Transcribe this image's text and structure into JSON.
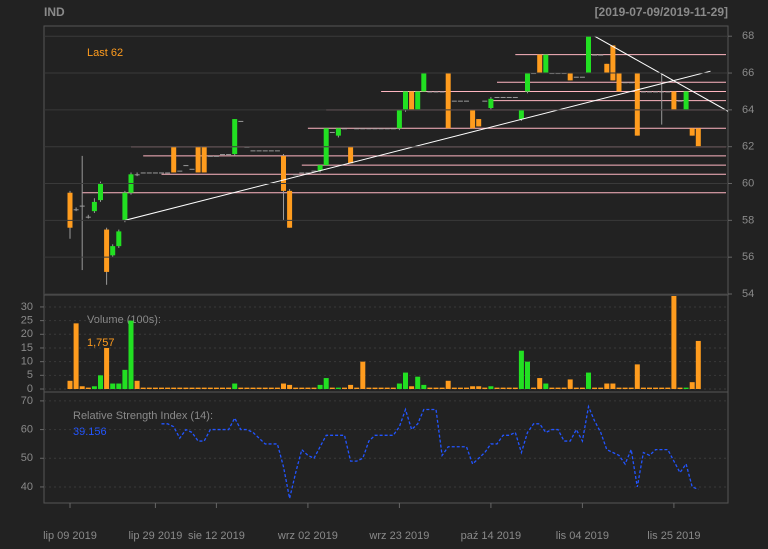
{
  "chart_data": [
    {
      "type": "candlestick",
      "title": "IND",
      "subtitle": "[2019-07-09/2019-11-29]",
      "annotation": "Last 62",
      "categories": [
        "lip 09 2019",
        null,
        null,
        null,
        null,
        null,
        null,
        null,
        null,
        null,
        null,
        null,
        null,
        null,
        "lip 29 2019",
        null,
        null,
        null,
        null,
        null,
        null,
        null,
        null,
        null,
        "sie 12 2019",
        null,
        null,
        null,
        null,
        null,
        null,
        null,
        null,
        null,
        null,
        null,
        null,
        null,
        null,
        "wrz 02 2019",
        null,
        null,
        null,
        null,
        null,
        null,
        null,
        null,
        null,
        null,
        null,
        null,
        null,
        null,
        "wrz 23 2019",
        null,
        null,
        null,
        null,
        null,
        null,
        null,
        null,
        null,
        null,
        null,
        null,
        null,
        null,
        "paź 14 2019",
        null,
        null,
        null,
        null,
        null,
        null,
        null,
        null,
        null,
        null,
        null,
        null,
        null,
        null,
        "lis 04 2019",
        null,
        null,
        null,
        null,
        null,
        null,
        null,
        null,
        null,
        null,
        null,
        null,
        null,
        null,
        "lis 25 2019",
        null,
        null,
        null,
        null
      ],
      "ohlc": [
        [
          59.5,
          59.6,
          57,
          57.6
        ],
        [
          58.6,
          58.7,
          58.5,
          58.6
        ],
        [
          58.8,
          61.5,
          55.3,
          58.8
        ],
        [
          58.2,
          58.3,
          58.1,
          58.2
        ],
        [
          58.5,
          59.2,
          58.4,
          59
        ],
        [
          59.1,
          60.1,
          59,
          60
        ],
        [
          57.5,
          57.6,
          54.5,
          55.2
        ],
        [
          56.1,
          56.7,
          56,
          56.6
        ],
        [
          56.6,
          57.5,
          56.5,
          57.4
        ],
        [
          58,
          59.6,
          57.9,
          59.5
        ],
        [
          59.5,
          60.6,
          59.4,
          60.5
        ],
        [
          60.5,
          60.6,
          60.4,
          60.5
        ],
        [
          60.6,
          60.6,
          60.6,
          60.6
        ],
        [
          60.6,
          60.6,
          60.6,
          60.6
        ],
        [
          60.6,
          60.6,
          60.6,
          60.6
        ],
        [
          60.6,
          60.6,
          60.6,
          60.6
        ],
        [
          60.6,
          60.6,
          60.6,
          60.6
        ],
        [
          62,
          62,
          60.6,
          60.6
        ],
        [
          60.7,
          60.7,
          60.7,
          60.7
        ],
        [
          61,
          61,
          61,
          61
        ],
        [
          60.8,
          60.8,
          60.8,
          60.8
        ],
        [
          62,
          62,
          60.6,
          60.6
        ],
        [
          62,
          62,
          60.6,
          60.6
        ],
        [
          61.5,
          61.5,
          61.5,
          61.5
        ],
        [
          61.5,
          61.5,
          61.5,
          61.5
        ],
        [
          61.6,
          61.6,
          61.6,
          61.6
        ],
        [
          61.6,
          61.6,
          61.6,
          61.6
        ],
        [
          61.6,
          63.5,
          61.5,
          63.5
        ],
        [
          63.4,
          63.4,
          63.4,
          63.4
        ],
        [
          62,
          62,
          62,
          62
        ],
        [
          61.8,
          61.8,
          61.8,
          61.8
        ],
        [
          61.8,
          61.8,
          61.8,
          61.8
        ],
        [
          61.8,
          61.8,
          61.8,
          61.8
        ],
        [
          61.8,
          61.8,
          61.8,
          61.8
        ],
        [
          61.8,
          61.8,
          61.8,
          61.8
        ],
        [
          61.5,
          61.6,
          58,
          59.6
        ],
        [
          59.6,
          59.7,
          57.6,
          57.6
        ],
        [
          60.5,
          60.5,
          60.5,
          60.5
        ],
        [
          60.6,
          60.6,
          60.6,
          60.6
        ],
        [
          60.6,
          60.6,
          60.6,
          60.6
        ],
        [
          60.7,
          60.7,
          60.7,
          60.7
        ],
        [
          60.7,
          61,
          60.6,
          61
        ],
        [
          61,
          63,
          61,
          63
        ],
        [
          62.8,
          62.8,
          62.8,
          62.8
        ],
        [
          62.6,
          63,
          62.5,
          63
        ],
        [
          63,
          63,
          63,
          63
        ],
        [
          62,
          62,
          61.1,
          61.1
        ],
        [
          63,
          63,
          63,
          63
        ],
        [
          63,
          63,
          63,
          63
        ],
        [
          63,
          63,
          63,
          63
        ],
        [
          63,
          63,
          63,
          63
        ],
        [
          63,
          63,
          63,
          63
        ],
        [
          63,
          63,
          63,
          63
        ],
        [
          63,
          63,
          63,
          63
        ],
        [
          63,
          64,
          62.9,
          64
        ],
        [
          64,
          65,
          63.9,
          65
        ],
        [
          65,
          65,
          64,
          64
        ],
        [
          64,
          65,
          64,
          65
        ],
        [
          65,
          66,
          65,
          66
        ],
        [
          65,
          65,
          65,
          65
        ],
        [
          65,
          65,
          65,
          65
        ],
        [
          65,
          65,
          65,
          65
        ],
        [
          66,
          66,
          63,
          63
        ],
        [
          64.5,
          64.5,
          64.5,
          64.5
        ],
        [
          64.5,
          64.5,
          64.5,
          64.5
        ],
        [
          64.5,
          64.5,
          64.5,
          64.5
        ],
        [
          64,
          64,
          63,
          63
        ],
        [
          63.5,
          63.5,
          63.1,
          63.1
        ],
        [
          64.5,
          64.5,
          64.5,
          64.5
        ],
        [
          64.1,
          64.7,
          64,
          64.6
        ],
        [
          64.7,
          64.7,
          64.7,
          64.7
        ],
        [
          64.7,
          64.7,
          64.7,
          64.7
        ],
        [
          64.7,
          64.7,
          64.7,
          64.7
        ],
        [
          64.7,
          64.7,
          64.7,
          64.7
        ],
        [
          63.5,
          64,
          63.4,
          64
        ],
        [
          65,
          66,
          64.9,
          66
        ],
        [
          66,
          66,
          66,
          66
        ],
        [
          67,
          67,
          66,
          66
        ],
        [
          66,
          67,
          66,
          67
        ],
        [
          66,
          66,
          66,
          66
        ],
        [
          66,
          66,
          66,
          66
        ],
        [
          66,
          66,
          66,
          66
        ],
        [
          66,
          66,
          65.6,
          65.6
        ],
        [
          65.8,
          65.8,
          65.8,
          65.8
        ],
        [
          65.8,
          65.8,
          65.8,
          65.8
        ],
        [
          66,
          68,
          66,
          68
        ],
        [
          67,
          67,
          67,
          67
        ],
        [
          67,
          67,
          67,
          67
        ],
        [
          66.5,
          66.5,
          66,
          66
        ],
        [
          67.5,
          67.5,
          65.6,
          65.6
        ],
        [
          66,
          66,
          65,
          65
        ],
        [
          65.5,
          65.5,
          65.5,
          65.5
        ],
        [
          65.5,
          65.5,
          65.5,
          65.5
        ],
        [
          66,
          66,
          62.6,
          62.6
        ],
        [
          65,
          65,
          65,
          65
        ],
        [
          65,
          65,
          65,
          65
        ],
        [
          65,
          65,
          65,
          65
        ],
        [
          65,
          66,
          63.2,
          65
        ],
        [
          65,
          65,
          65,
          65
        ],
        [
          65,
          65,
          64,
          64
        ],
        [
          64.5,
          64.5,
          64.5,
          64.5
        ],
        [
          64,
          65,
          64,
          65
        ],
        [
          63,
          63,
          62.6,
          62.6
        ],
        [
          63,
          63,
          62,
          62
        ]
      ],
      "up_color": "#22e022",
      "down_color": "#ff9c1e",
      "ylim": [
        54,
        68.5
      ],
      "yticks": [
        54,
        56,
        58,
        60,
        62,
        64,
        66,
        68
      ],
      "grid": true,
      "hlines": [
        {
          "value": 67,
          "from": 73
        },
        {
          "value": 66,
          "from": 53
        },
        {
          "value": 65.5,
          "from": 70
        },
        {
          "value": 65,
          "from": 51
        },
        {
          "value": 64.5,
          "from": 69
        },
        {
          "value": 64,
          "from": 42
        },
        {
          "value": 63,
          "from": 39
        },
        {
          "value": 62,
          "from": 10
        },
        {
          "value": 61.5,
          "from": 12
        },
        {
          "value": 61,
          "from": 38
        },
        {
          "value": 60.5,
          "from": 15
        },
        {
          "value": 60,
          "from": 3
        },
        {
          "value": 59.5,
          "from": 2
        }
      ],
      "hline_color": "#ffb6c1",
      "trendlines": [
        {
          "x": [
            9,
            105
          ],
          "y": [
            58,
            66.1
          ]
        },
        {
          "x": [
            86,
            108
          ],
          "y": [
            68,
            63.9
          ]
        }
      ],
      "trend_color": "#ffffff"
    },
    {
      "type": "bar",
      "title": "Volume (100s):",
      "annotation": "1,757",
      "values": [
        3,
        24,
        1,
        0.5,
        1,
        5,
        15,
        2,
        2,
        7,
        25,
        3,
        0.5,
        0.5,
        0.5,
        0.5,
        0.5,
        0.5,
        0.5,
        0.5,
        0.5,
        0.5,
        0.5,
        0.5,
        0.5,
        0.5,
        0.5,
        2,
        0.5,
        0.5,
        0.5,
        0.5,
        0.5,
        0.5,
        0.5,
        2,
        1.5,
        0.5,
        0.5,
        0.5,
        0.5,
        1.5,
        4,
        0.5,
        0.5,
        0.5,
        1.5,
        0.5,
        10,
        0.5,
        0.5,
        0.5,
        0.5,
        0.5,
        2,
        6,
        1,
        4.5,
        1.5,
        0.5,
        0.5,
        0.5,
        3,
        0.5,
        0.5,
        0.5,
        1,
        1,
        0.5,
        1,
        0.5,
        0.5,
        0.5,
        0.5,
        14,
        10,
        0.5,
        4,
        2,
        0.5,
        0.5,
        0.5,
        3.5,
        0.5,
        0.5,
        6,
        0.5,
        0.5,
        2,
        2,
        0.5,
        0.5,
        0.5,
        9,
        0.5,
        0.5,
        0.5,
        0.5,
        0.5,
        34,
        0.5,
        0.5,
        2.5,
        17.57
      ],
      "ylim": [
        0,
        34
      ],
      "yticks": [
        0,
        5,
        10,
        15,
        20,
        25,
        30
      ],
      "grid": true
    },
    {
      "type": "line",
      "title": "Relative Strength Index (14):",
      "annotation": "39.156",
      "color": "#2255ff",
      "values": [
        null,
        null,
        null,
        null,
        null,
        null,
        null,
        null,
        null,
        null,
        null,
        null,
        null,
        null,
        null,
        62,
        62,
        61,
        57,
        60,
        59,
        56,
        56,
        60,
        60,
        60,
        60,
        64,
        60,
        60,
        59,
        57,
        55,
        55,
        55,
        47,
        36,
        45,
        53,
        51,
        50,
        54,
        58,
        58,
        58,
        58,
        49,
        49,
        50,
        56,
        58,
        58,
        58,
        58,
        61,
        67,
        60,
        62,
        67,
        67,
        67,
        51,
        54,
        54,
        54,
        54,
        48,
        50,
        52,
        55,
        55,
        58,
        58,
        59,
        52,
        59,
        62,
        62,
        59,
        60,
        60,
        56,
        56,
        60,
        56,
        68,
        63,
        59,
        53,
        52,
        51,
        48,
        53,
        40,
        52,
        51,
        53,
        53,
        53,
        49,
        45,
        48,
        40,
        39.156
      ],
      "ylim": [
        34.4,
        73.1
      ],
      "yticks": [
        40,
        50,
        60,
        70
      ],
      "grid": true
    }
  ]
}
